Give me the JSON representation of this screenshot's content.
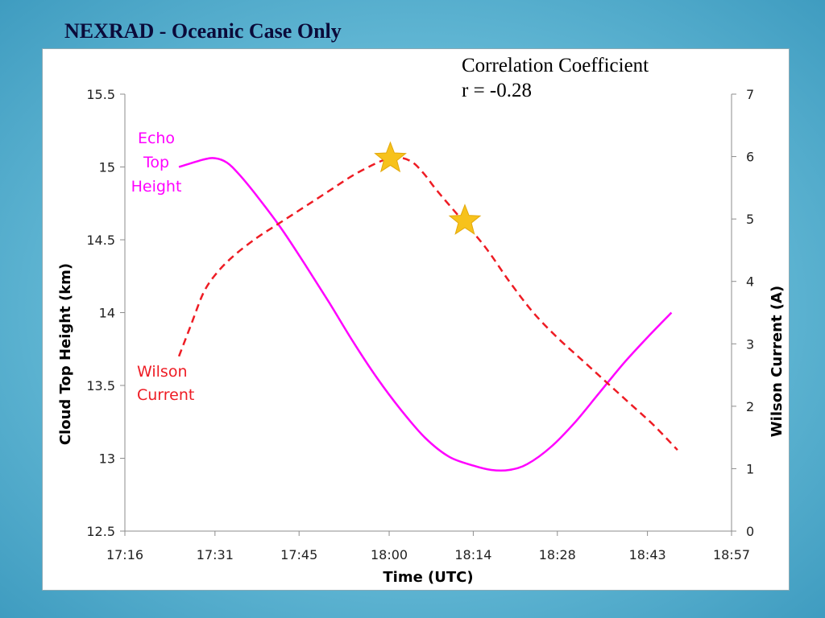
{
  "slide": {
    "title": "NEXRAD - Oceanic Case Only",
    "correlation_label": "Correlation Coefficient",
    "correlation_value": "r = -0.28"
  },
  "colors": {
    "echo_top": "#ff00ff",
    "wilson": "#ee1c24",
    "star": "#f7c21b"
  },
  "chart_data": {
    "type": "line",
    "title": "",
    "xlabel": "Time (UTC)",
    "ylabel": "Cloud Top Height (km)",
    "y2label": "Wilson Current (A)",
    "x_ticks": [
      "17:16",
      "17:31",
      "17:45",
      "18:00",
      "18:14",
      "18:28",
      "18:43",
      "18:57"
    ],
    "x_tick_minutes": [
      1036,
      1051,
      1065,
      1080,
      1094,
      1108,
      1123,
      1137
    ],
    "xlim_minutes": [
      1036,
      1137
    ],
    "y_ticks": [
      "12.5",
      "13",
      "13.5",
      "14",
      "14.5",
      "15",
      "15.5"
    ],
    "ylim": [
      12.5,
      15.5
    ],
    "y2_ticks": [
      "0",
      "1",
      "2",
      "3",
      "4",
      "5",
      "6",
      "7"
    ],
    "y2lim": [
      0,
      7
    ],
    "series": [
      {
        "name": "Echo Top Height",
        "label_lines": [
          "Echo",
          "Top",
          "Height"
        ],
        "axis": "left",
        "style": "solid",
        "x_minutes": [
          1045,
          1049,
          1051,
          1053,
          1055,
          1058,
          1062,
          1066,
          1070,
          1074,
          1078,
          1082,
          1086,
          1090,
          1094,
          1097,
          1100,
          1103,
          1107,
          1111,
          1115,
          1119,
          1123,
          1127
        ],
        "values": [
          15.0,
          15.05,
          15.06,
          15.03,
          14.95,
          14.8,
          14.58,
          14.33,
          14.07,
          13.8,
          13.55,
          13.33,
          13.14,
          13.01,
          12.95,
          12.92,
          12.92,
          12.96,
          13.08,
          13.25,
          13.45,
          13.65,
          13.83,
          14.0
        ]
      },
      {
        "name": "Wilson Current",
        "label_lines": [
          "Wilson",
          "Current"
        ],
        "axis": "right",
        "style": "dashed",
        "x_minutes": [
          1045,
          1047,
          1049,
          1051,
          1054,
          1058,
          1062,
          1066,
          1070,
          1074,
          1078,
          1080,
          1082,
          1084,
          1086,
          1088,
          1092,
          1096,
          1100,
          1104,
          1108,
          1112,
          1116,
          1120,
          1124,
          1128
        ],
        "values": [
          2.8,
          3.3,
          3.8,
          4.1,
          4.4,
          4.7,
          4.95,
          5.2,
          5.45,
          5.7,
          5.9,
          5.97,
          5.98,
          5.9,
          5.7,
          5.45,
          5.0,
          4.55,
          4.0,
          3.5,
          3.1,
          2.75,
          2.4,
          2.05,
          1.7,
          1.3
        ]
      }
    ],
    "markers": [
      {
        "shape": "star",
        "series": "Wilson Current",
        "x_minutes": 1080.2,
        "value": 5.97
      },
      {
        "shape": "star",
        "series": "Wilson Current",
        "x_minutes": 1092.6,
        "value": 4.97
      }
    ],
    "grid": false,
    "legend": "inline labels"
  }
}
